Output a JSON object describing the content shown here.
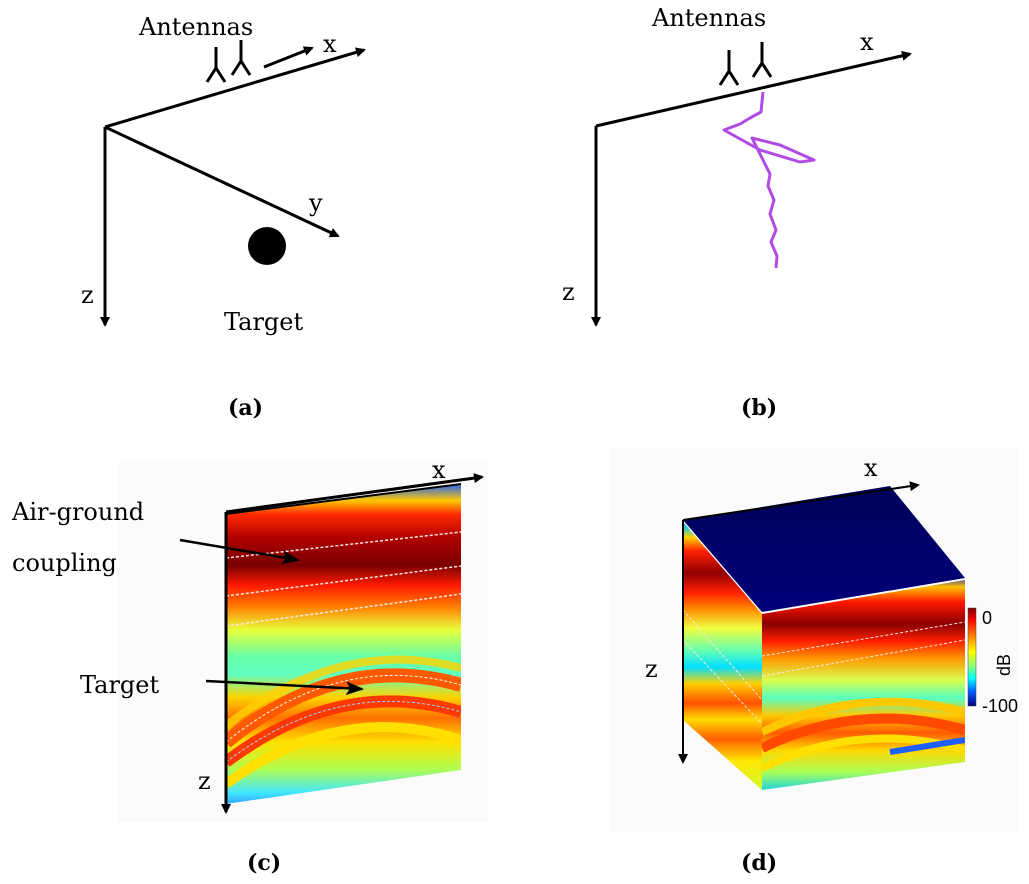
{
  "panels": {
    "a": {
      "caption": "(a)",
      "antennas_label": "Antennas",
      "x_label": "x",
      "y_label": "y",
      "z_label": "z",
      "target_label": "Target"
    },
    "b": {
      "caption": "(b)",
      "antennas_label": "Antennas",
      "x_label": "x",
      "z_label": "z"
    },
    "c": {
      "caption": "(c)",
      "x_label": "x",
      "z_label": "z",
      "annotation_air_line1": "Air-ground",
      "annotation_air_line2": "coupling",
      "annotation_target": "Target"
    },
    "d": {
      "caption": "(d)",
      "x_label": "x",
      "z_label": "z",
      "colorbar": {
        "max_label": "0",
        "min_label": "-100",
        "unit": "dB"
      }
    }
  },
  "colors": {
    "waveform": "#b04be6",
    "colormap": [
      "#00007f",
      "#0000ff",
      "#00bfff",
      "#7fff7f",
      "#ffff00",
      "#ff7f00",
      "#ff0000",
      "#7f0000"
    ]
  }
}
